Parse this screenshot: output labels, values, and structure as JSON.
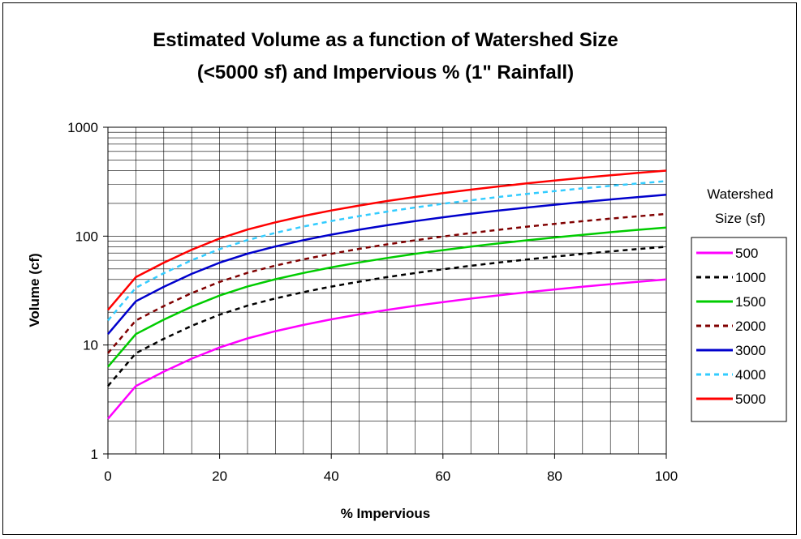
{
  "chart_data": {
    "type": "line",
    "title_lines": [
      "Estimated Volume as a function of Watershed Size",
      "(<5000 sf) and Impervious %  (1\" Rainfall)"
    ],
    "xlabel": "% Impervious",
    "ylabel": "Volume (cf)",
    "xlim": [
      0,
      100
    ],
    "ylim": [
      1,
      1000
    ],
    "y_scale": "log",
    "x_ticks": [
      0,
      20,
      40,
      60,
      80,
      100
    ],
    "y_ticks": [
      1,
      10,
      100,
      1000
    ],
    "grid": true,
    "legend_title_lines": [
      "Watershed",
      "Size (sf)"
    ],
    "legend_position": "right",
    "x": [
      0,
      5,
      10,
      15,
      20,
      25,
      30,
      35,
      40,
      45,
      50,
      55,
      60,
      65,
      70,
      75,
      80,
      85,
      90,
      95,
      100
    ],
    "series": [
      {
        "name": "500",
        "color": "#ff00ff",
        "dash": "solid",
        "values": [
          2.1,
          4.2,
          5.7,
          7.5,
          9.5,
          11.5,
          13.4,
          15.3,
          17.2,
          19.1,
          21.0,
          22.9,
          24.8,
          26.7,
          28.6,
          30.5,
          32.4,
          34.3,
          36.2,
          38.1,
          40.0
        ]
      },
      {
        "name": "1000",
        "color": "#000000",
        "dash": "dash",
        "values": [
          4.2,
          8.4,
          11.4,
          15.0,
          19.0,
          23.0,
          26.8,
          30.6,
          34.4,
          38.2,
          42.0,
          45.8,
          49.6,
          53.4,
          57.2,
          61.0,
          64.8,
          68.6,
          72.4,
          76.2,
          80.0
        ]
      },
      {
        "name": "1500",
        "color": "#00cc00",
        "dash": "solid",
        "values": [
          6.3,
          12.6,
          17.1,
          22.5,
          28.5,
          34.5,
          40.2,
          45.9,
          51.6,
          57.3,
          63.0,
          68.7,
          74.4,
          80.1,
          85.8,
          91.5,
          97.2,
          102.9,
          108.6,
          114.3,
          120.0
        ]
      },
      {
        "name": "2000",
        "color": "#800000",
        "dash": "dash",
        "values": [
          8.4,
          16.8,
          22.8,
          30.0,
          38.0,
          46.0,
          53.6,
          61.2,
          68.8,
          76.4,
          84.0,
          91.6,
          99.2,
          106.8,
          114.4,
          122.0,
          129.6,
          137.2,
          144.8,
          152.4,
          160.0
        ]
      },
      {
        "name": "3000",
        "color": "#0000cc",
        "dash": "solid",
        "values": [
          12.6,
          25.2,
          34.2,
          45.0,
          57.0,
          69.0,
          80.4,
          91.8,
          103.2,
          114.6,
          126.0,
          137.4,
          148.8,
          160.2,
          171.6,
          183.0,
          194.4,
          205.8,
          217.2,
          228.6,
          240.0
        ]
      },
      {
        "name": "4000",
        "color": "#33ccff",
        "dash": "dash",
        "values": [
          16.8,
          33.6,
          45.6,
          60.0,
          76.0,
          92.0,
          107.2,
          122.4,
          137.6,
          152.8,
          168.0,
          183.2,
          198.4,
          213.6,
          228.8,
          244.0,
          259.2,
          274.4,
          289.6,
          304.8,
          320.0
        ]
      },
      {
        "name": "5000",
        "color": "#ff0000",
        "dash": "solid",
        "values": [
          21.0,
          42.0,
          57.0,
          75.0,
          95.0,
          115.0,
          134.0,
          153.0,
          172.0,
          191.0,
          210.0,
          229.0,
          248.0,
          267.0,
          286.0,
          305.0,
          324.0,
          343.0,
          362.0,
          381.0,
          400.0
        ]
      }
    ]
  }
}
